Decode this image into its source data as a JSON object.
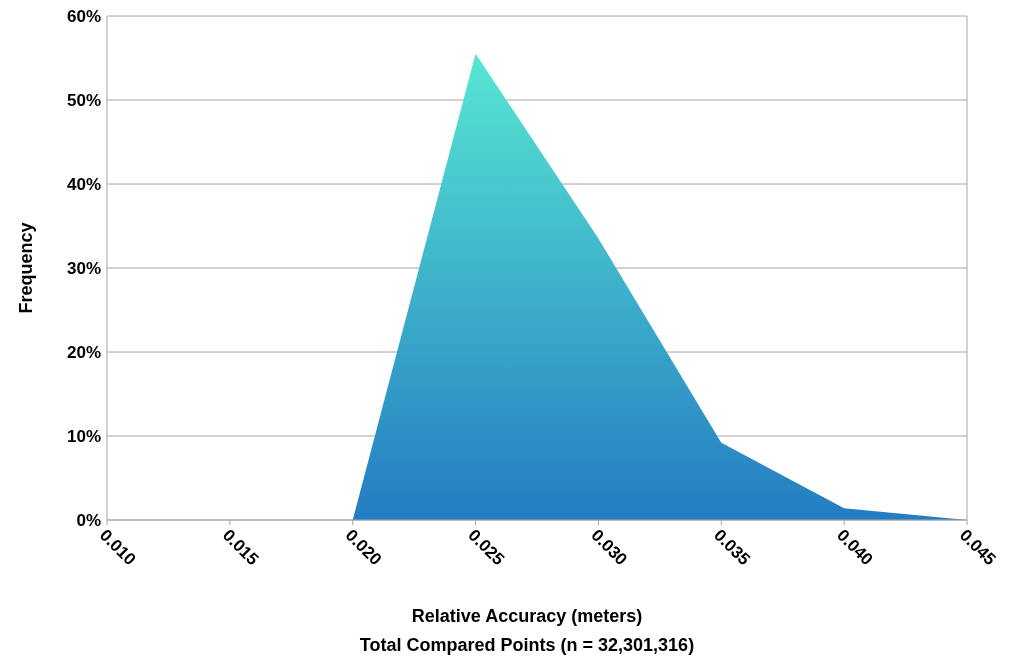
{
  "chart_data": {
    "type": "area",
    "categories": [
      "0.010",
      "0.015",
      "0.020",
      "0.025",
      "0.030",
      "0.035",
      "0.040",
      "0.045"
    ],
    "series": [
      {
        "color": "#2a8fe0",
        "values": [
          0,
          0,
          0,
          55.5,
          33.5,
          9.2,
          1.4,
          0
        ]
      }
    ],
    "ylim": [
      0,
      60
    ],
    "yticks": [
      {
        "value": 0,
        "label": "0%"
      },
      {
        "value": 10,
        "label": "10%"
      },
      {
        "value": 20,
        "label": "20%"
      },
      {
        "value": 30,
        "label": "30%"
      },
      {
        "value": 40,
        "label": "40%"
      },
      {
        "value": 50,
        "label": "50%"
      },
      {
        "value": 60,
        "label": "60%"
      }
    ],
    "ylabel": "Frequency",
    "xlabel": "Relative Accuracy (meters)",
    "annotations": [
      "Total Compared Points (n = 32,301,316)"
    ],
    "grid": "y"
  }
}
